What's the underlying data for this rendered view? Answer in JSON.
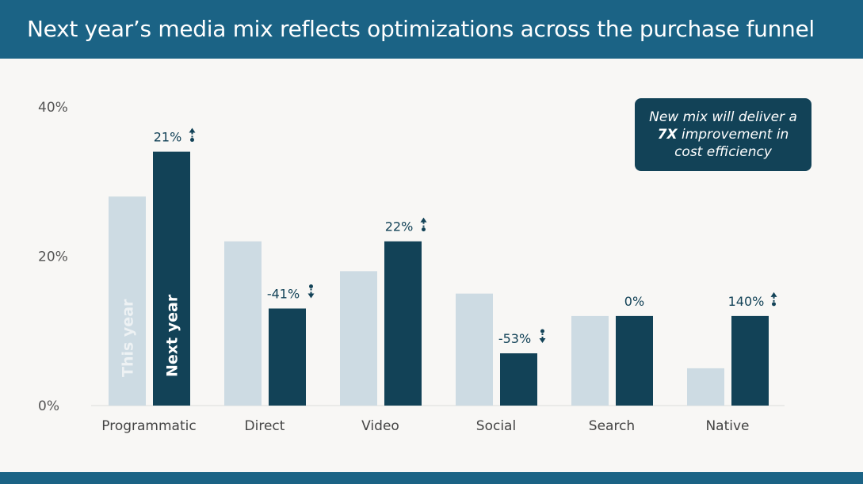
{
  "title": "Next year’s media mix reflects optimizations across the purchase funnel",
  "callout": {
    "line1": "New mix will deliver a",
    "bold": "7X",
    "line2": "improvement in",
    "line3": "cost efficiency"
  },
  "colors": {
    "this_year": "#cddbe3",
    "next_year": "#124257",
    "header": "#1b6385",
    "background": "#f8f7f5"
  },
  "chart_data": {
    "type": "bar",
    "categories": [
      "Programmatic",
      "Direct",
      "Video",
      "Social",
      "Search",
      "Native"
    ],
    "series": [
      {
        "name": "This year",
        "values": [
          28,
          22,
          18,
          15,
          12,
          5
        ]
      },
      {
        "name": "Next year",
        "values": [
          34,
          13,
          22,
          7,
          12,
          12
        ]
      }
    ],
    "change_labels": [
      "21%",
      "-41%",
      "22%",
      "-53%",
      "0%",
      "140%"
    ],
    "change_direction": [
      "up",
      "down",
      "up",
      "down",
      "none",
      "up"
    ],
    "yticks": [
      "0%",
      "20%",
      "40%"
    ],
    "ytick_values": [
      0,
      20,
      40
    ],
    "ylim": [
      0,
      40
    ],
    "grid": false,
    "legend": "inside-bars"
  }
}
